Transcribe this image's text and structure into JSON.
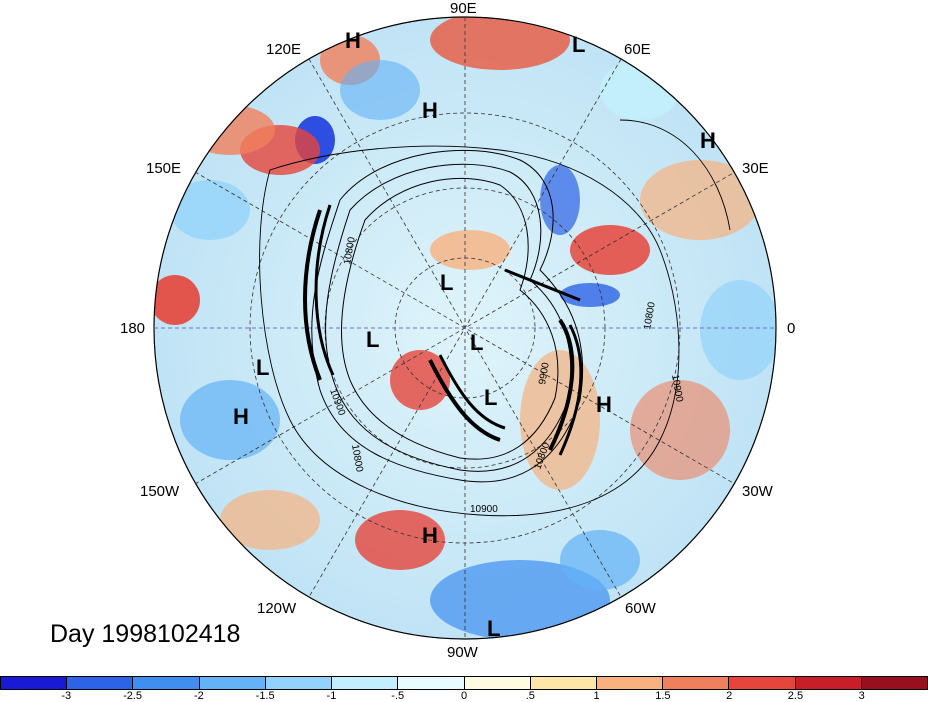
{
  "title": "Day 1998102418",
  "longitude_labels": [
    {
      "text": "90E",
      "id": "lon-90e"
    },
    {
      "text": "60E",
      "id": "lon-60e"
    },
    {
      "text": "120E",
      "id": "lon-120e"
    },
    {
      "text": "30E",
      "id": "lon-30e"
    },
    {
      "text": "150E",
      "id": "lon-150e"
    },
    {
      "text": "180",
      "id": "lon-180"
    },
    {
      "text": "0",
      "id": "lon-0"
    },
    {
      "text": "150W",
      "id": "lon-150w"
    },
    {
      "text": "30W",
      "id": "lon-30w"
    },
    {
      "text": "120W",
      "id": "lon-120w"
    },
    {
      "text": "60W",
      "id": "lon-60w"
    },
    {
      "text": "90W",
      "id": "lon-90w"
    }
  ],
  "pressure_centers": [
    {
      "type": "H"
    },
    {
      "type": "L"
    },
    {
      "type": "H"
    },
    {
      "type": "H"
    },
    {
      "type": "L"
    },
    {
      "type": "L"
    },
    {
      "type": "L"
    },
    {
      "type": "L"
    },
    {
      "type": "L"
    },
    {
      "type": "H"
    },
    {
      "type": "H"
    },
    {
      "type": "H"
    },
    {
      "type": "L"
    }
  ],
  "contour_labels": [
    "10800",
    "10900",
    "9900",
    "10800",
    "10900",
    "10800",
    "10900",
    "10800"
  ],
  "colorbar": {
    "ticks": [
      "-3",
      "-2.5",
      "-2",
      "-1.5",
      "-1",
      "-.5",
      "0",
      ".5",
      "1",
      "1.5",
      "2",
      "2.5",
      "3"
    ],
    "colors": [
      "#1a1ad6",
      "#2d63e6",
      "#3f8ef0",
      "#64b2f7",
      "#93d3fb",
      "#c3eefd",
      "#e8fbff",
      "#fffbe0",
      "#fde7a8",
      "#f7b27f",
      "#f0805d",
      "#e6453b",
      "#c71e2a",
      "#9a0f1f"
    ]
  }
}
